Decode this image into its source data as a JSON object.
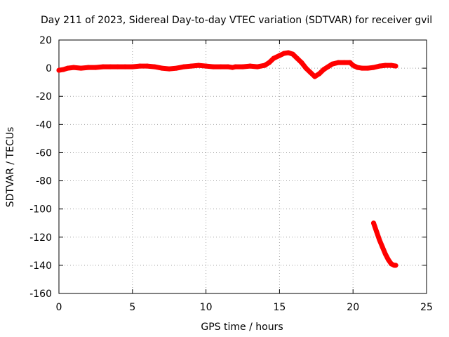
{
  "chart_data": {
    "type": "scatter",
    "title": "Day 211 of 2023, Sidereal Day-to-day VTEC variation (SDTVAR) for receiver gvil",
    "xlabel": "GPS time / hours",
    "ylabel": "SDTVAR / TECUs",
    "xlim": [
      0,
      25
    ],
    "ylim": [
      -160,
      20
    ],
    "xticks": [
      0,
      5,
      10,
      15,
      20,
      25
    ],
    "yticks": [
      -160,
      -140,
      -120,
      -100,
      -80,
      -60,
      -40,
      -20,
      0,
      20
    ],
    "grid": true,
    "color": "#ff0000",
    "series": [
      {
        "x": [
          0.0,
          0.3,
          0.6,
          1.0,
          1.5,
          2.0,
          2.5,
          3.0,
          3.5,
          4.0,
          4.5,
          5.0,
          5.5,
          6.0,
          6.5,
          7.0,
          7.5,
          8.0,
          8.5,
          9.0,
          9.5,
          10.0,
          10.5,
          11.0,
          11.5,
          11.8,
          12.0,
          12.5,
          13.0,
          13.5,
          14.0,
          14.3,
          14.6,
          15.0,
          15.3,
          15.6,
          15.9,
          16.2,
          16.5,
          16.8,
          17.1,
          17.4,
          17.7,
          18.0,
          18.3,
          18.6,
          19.0,
          19.4,
          19.8,
          20.0,
          20.3,
          20.6,
          21.0,
          21.4,
          21.8,
          22.2,
          22.6,
          22.9
        ],
        "y": [
          -1.5,
          -1,
          0,
          0.5,
          0,
          0.5,
          0.5,
          1,
          1,
          1,
          1,
          1,
          1.5,
          1.5,
          1,
          0,
          -0.5,
          0,
          1,
          1.5,
          2,
          1.5,
          1,
          1,
          1,
          0.5,
          1,
          1,
          1.5,
          1,
          2,
          4,
          7,
          9,
          10.5,
          11,
          10,
          7,
          4,
          0,
          -3,
          -6,
          -4,
          -1,
          1,
          3,
          4,
          4,
          4,
          2,
          0.5,
          0,
          0,
          0.5,
          1.5,
          2,
          2,
          1.5
        ]
      },
      {
        "x": [
          21.4,
          21.6,
          21.8,
          22.0,
          22.2,
          22.4,
          22.6,
          22.8,
          22.9
        ],
        "y": [
          -110,
          -116,
          -122,
          -127,
          -132,
          -136,
          -139,
          -140,
          -140
        ]
      }
    ]
  }
}
